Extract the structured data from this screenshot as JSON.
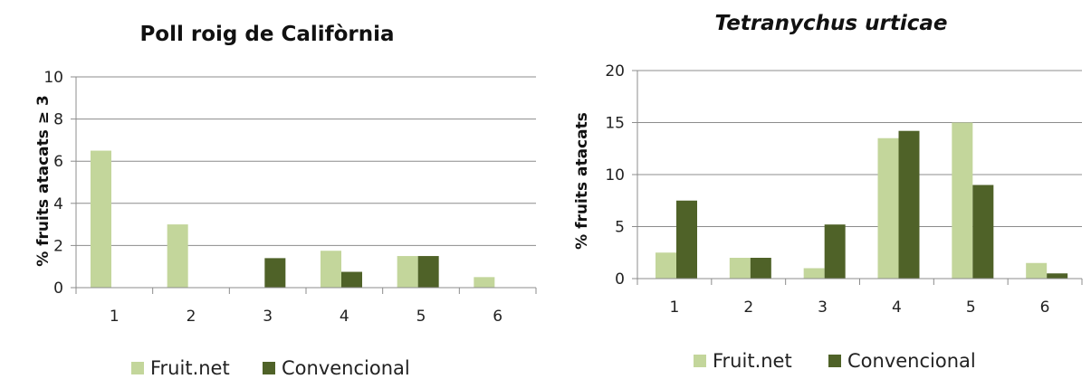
{
  "chart_data": [
    {
      "type": "bar",
      "title": "Poll roig de Califòrnia",
      "title_italic": false,
      "xlabel": "",
      "ylabel": "% fruits atacats ≥ 3",
      "categories": [
        "1",
        "2",
        "3",
        "4",
        "5",
        "6"
      ],
      "ylim": [
        0,
        10
      ],
      "yticks": [
        0,
        2,
        4,
        6,
        8,
        10
      ],
      "grid": true,
      "legend": "bottom",
      "series": [
        {
          "name": "Fruit.net",
          "color": "#c3d69b",
          "values": [
            6.5,
            3.0,
            0,
            1.75,
            1.5,
            0.5
          ]
        },
        {
          "name": "Convencional",
          "color": "#4f6228",
          "values": [
            0,
            0,
            1.4,
            0.75,
            1.5,
            0
          ]
        }
      ]
    },
    {
      "type": "bar",
      "title": "Tetranychus urticae",
      "title_italic": true,
      "xlabel": "",
      "ylabel": "% fruits atacats",
      "categories": [
        "1",
        "2",
        "3",
        "4",
        "5",
        "6"
      ],
      "ylim": [
        0,
        20
      ],
      "yticks": [
        0,
        5,
        10,
        15,
        20
      ],
      "grid": true,
      "legend": "bottom",
      "series": [
        {
          "name": "Fruit.net",
          "color": "#c3d69b",
          "values": [
            2.5,
            2.0,
            1.0,
            13.5,
            15.0,
            1.5
          ]
        },
        {
          "name": "Convencional",
          "color": "#4f6228",
          "values": [
            7.5,
            2.0,
            5.2,
            14.2,
            9.0,
            0.5
          ]
        }
      ]
    }
  ]
}
